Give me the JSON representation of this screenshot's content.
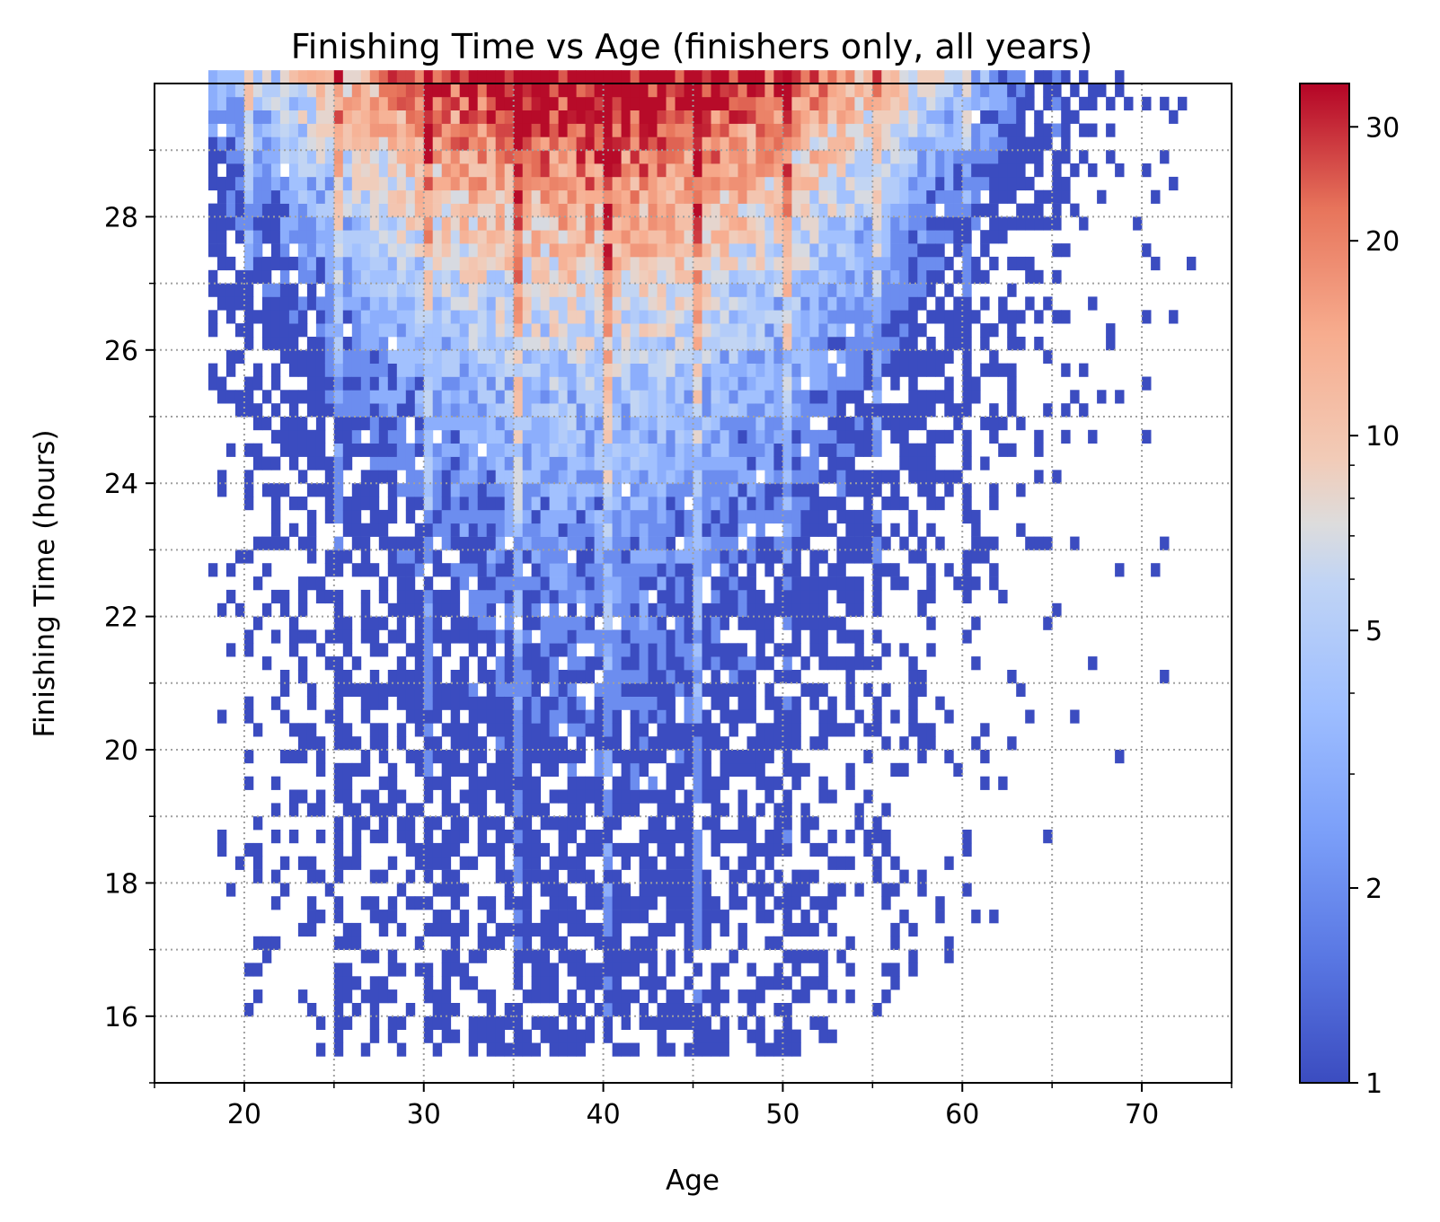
{
  "chart_data": {
    "type": "heatmap",
    "title": "Finishing Time vs Age (finishers only, all years)",
    "xlabel": "Age",
    "ylabel": "Finishing Time (hours)",
    "xlim": [
      15,
      75
    ],
    "ylim": [
      15,
      30
    ],
    "x_ticks": [
      {
        "value": 20,
        "label": "20"
      },
      {
        "value": 30,
        "label": "30"
      },
      {
        "value": 40,
        "label": "40"
      },
      {
        "value": 50,
        "label": "50"
      },
      {
        "value": 60,
        "label": "60"
      },
      {
        "value": 70,
        "label": "70"
      }
    ],
    "y_ticks": [
      {
        "value": 16,
        "label": "16"
      },
      {
        "value": 18,
        "label": "18"
      },
      {
        "value": 20,
        "label": "20"
      },
      {
        "value": 22,
        "label": "22"
      },
      {
        "value": 24,
        "label": "24"
      },
      {
        "value": 26,
        "label": "26"
      },
      {
        "value": 28,
        "label": "28"
      }
    ],
    "grid": true,
    "colormap": "coolwarm",
    "color_scale": "log",
    "colorbar": {
      "range": [
        1,
        35
      ],
      "ticks": [
        {
          "value": 1,
          "label": "1"
        },
        {
          "value": 2,
          "label": "2"
        },
        {
          "value": 5,
          "label": "5"
        },
        {
          "value": 10,
          "label": "10"
        },
        {
          "value": 20,
          "label": "20"
        },
        {
          "value": 30,
          "label": "30"
        }
      ]
    },
    "bins": {
      "x_width": 0.5,
      "y_height": 0.2
    },
    "density_profile": [
      {
        "age_range": [
          18,
          20
        ],
        "time_range": [
          28.2,
          29.8
        ],
        "count_range": [
          1,
          3
        ]
      },
      {
        "age_range": [
          20,
          30
        ],
        "time_range": [
          16.8,
          30
        ],
        "count_range": [
          1,
          8
        ]
      },
      {
        "age_range": [
          30,
          50
        ],
        "time_range": [
          28.5,
          30
        ],
        "count_range": [
          8,
          35
        ]
      },
      {
        "age_range": [
          30,
          50
        ],
        "time_range": [
          22,
          28.5
        ],
        "count_range": [
          1,
          12
        ]
      },
      {
        "age_range": [
          30,
          50
        ],
        "time_range": [
          15.5,
          22
        ],
        "count_range": [
          1,
          4
        ]
      },
      {
        "age_range": [
          50,
          60
        ],
        "time_range": [
          18.5,
          30
        ],
        "count_range": [
          1,
          15
        ]
      },
      {
        "age_range": [
          60,
          73
        ],
        "time_range": [
          16.5,
          30
        ],
        "count_range": [
          1,
          4
        ]
      }
    ]
  }
}
